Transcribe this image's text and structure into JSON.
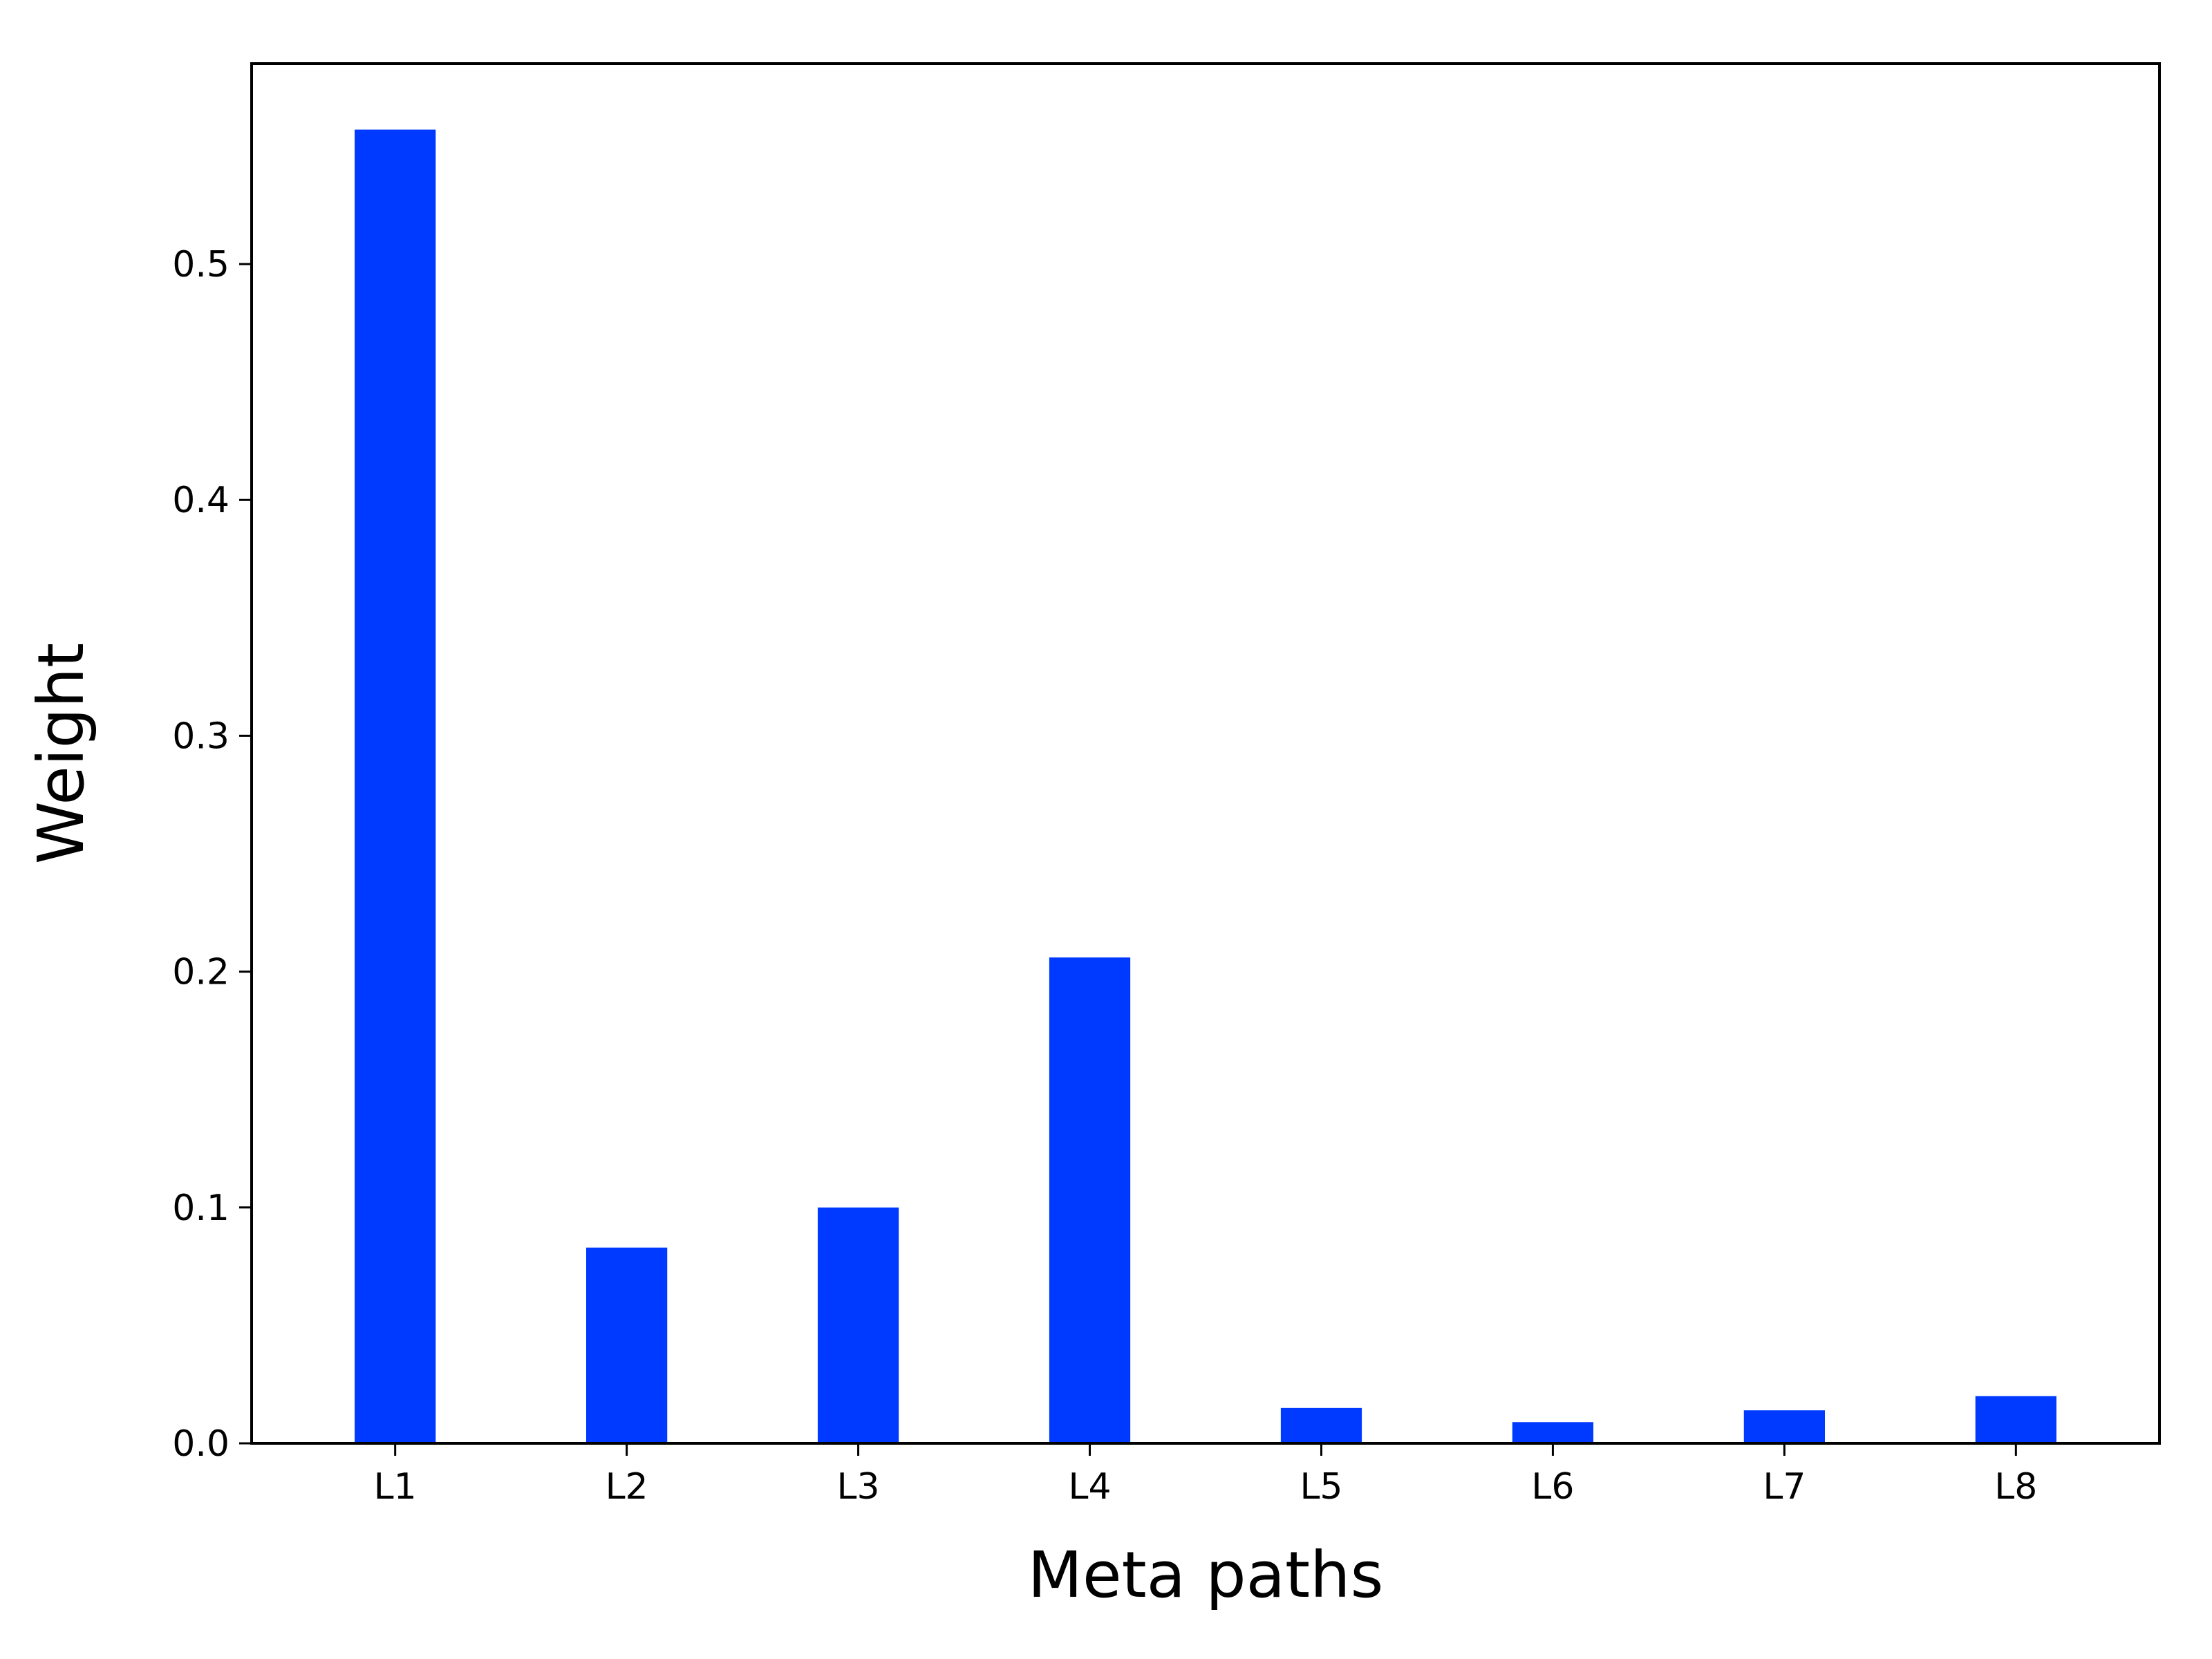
{
  "chart_data": {
    "type": "bar",
    "categories": [
      "L1",
      "L2",
      "L3",
      "L4",
      "L5",
      "L6",
      "L7",
      "L8"
    ],
    "values": [
      0.557,
      0.083,
      0.1,
      0.206,
      0.015,
      0.009,
      0.014,
      0.02
    ],
    "title": "",
    "xlabel": "Meta paths",
    "ylabel": "Weight",
    "ylim": [
      0.0,
      0.585
    ],
    "yticks": [
      0.0,
      0.1,
      0.2,
      0.3,
      0.4,
      0.5
    ],
    "ytick_labels": [
      "0.0",
      "0.1",
      "0.2",
      "0.3",
      "0.4",
      "0.5"
    ],
    "bar_color": "#0039ff",
    "grid": false,
    "legend": "none"
  }
}
